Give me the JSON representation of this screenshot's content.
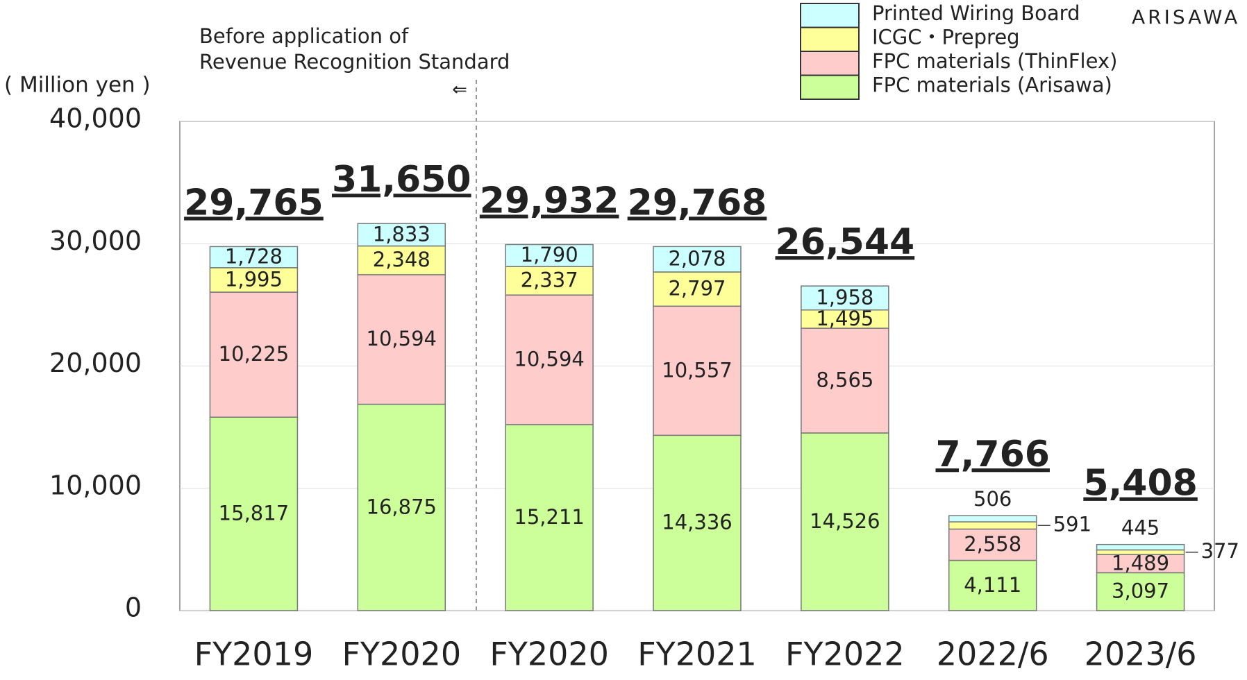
{
  "chart_data": {
    "type": "bar",
    "stacked": true,
    "y_axis_label": "( Million yen )",
    "annotations": [
      "Before application of",
      "Revenue Recognition Standard",
      "⇐"
    ],
    "brand": "ARISAWA",
    "categories": [
      "FY2019",
      "FY2020",
      "FY2020",
      "FY2021",
      "FY2022",
      "2022/6",
      "2023/6"
    ],
    "series": [
      {
        "name": "FPC materials (Arisawa)",
        "color": "#ccff99",
        "values": [
          15817,
          16875,
          15211,
          14336,
          14526,
          4111,
          3097
        ],
        "value_labels": [
          "15,817",
          "16,875",
          "15,211",
          "14,336",
          "14,526",
          "4,111",
          "3,097"
        ]
      },
      {
        "name": "FPC materials (ThinFlex)",
        "color": "#ffcccc",
        "values": [
          10225,
          10594,
          10594,
          10557,
          8565,
          2558,
          1489
        ],
        "value_labels": [
          "10,225",
          "10,594",
          "10,594",
          "10,557",
          "8,565",
          "2,558",
          "1,489"
        ]
      },
      {
        "name": "ICGC・Prepreg",
        "color": "#ffff99",
        "values": [
          1995,
          2348,
          2337,
          2797,
          1495,
          591,
          377
        ],
        "value_labels": [
          "1,995",
          "2,348",
          "2,337",
          "2,797",
          "1,495",
          "591",
          "377"
        ]
      },
      {
        "name": "Printed Wiring Board",
        "color": "#ccffff",
        "values": [
          1728,
          1833,
          1790,
          2078,
          1958,
          506,
          445
        ],
        "value_labels": [
          "1,728",
          "1,833",
          "1,790",
          "2,078",
          "1,958",
          "506",
          "445"
        ]
      }
    ],
    "totals": [
      29765,
      31650,
      29932,
      29768,
      26544,
      7766,
      5408
    ],
    "total_labels": [
      "29,765",
      "31,650",
      "29,932",
      "29,768",
      "26,544",
      "7,766",
      "5,408"
    ],
    "ylim": [
      0,
      40000
    ],
    "yticks": [
      0,
      {
        "value": 10000,
        "label": "10,000"
      },
      {
        "value": 20000,
        "label": "20,000"
      },
      {
        "value": 30000,
        "label": "30,000"
      },
      {
        "value": 40000,
        "label": "40,000"
      }
    ],
    "grid": true,
    "legend": "top-right"
  }
}
